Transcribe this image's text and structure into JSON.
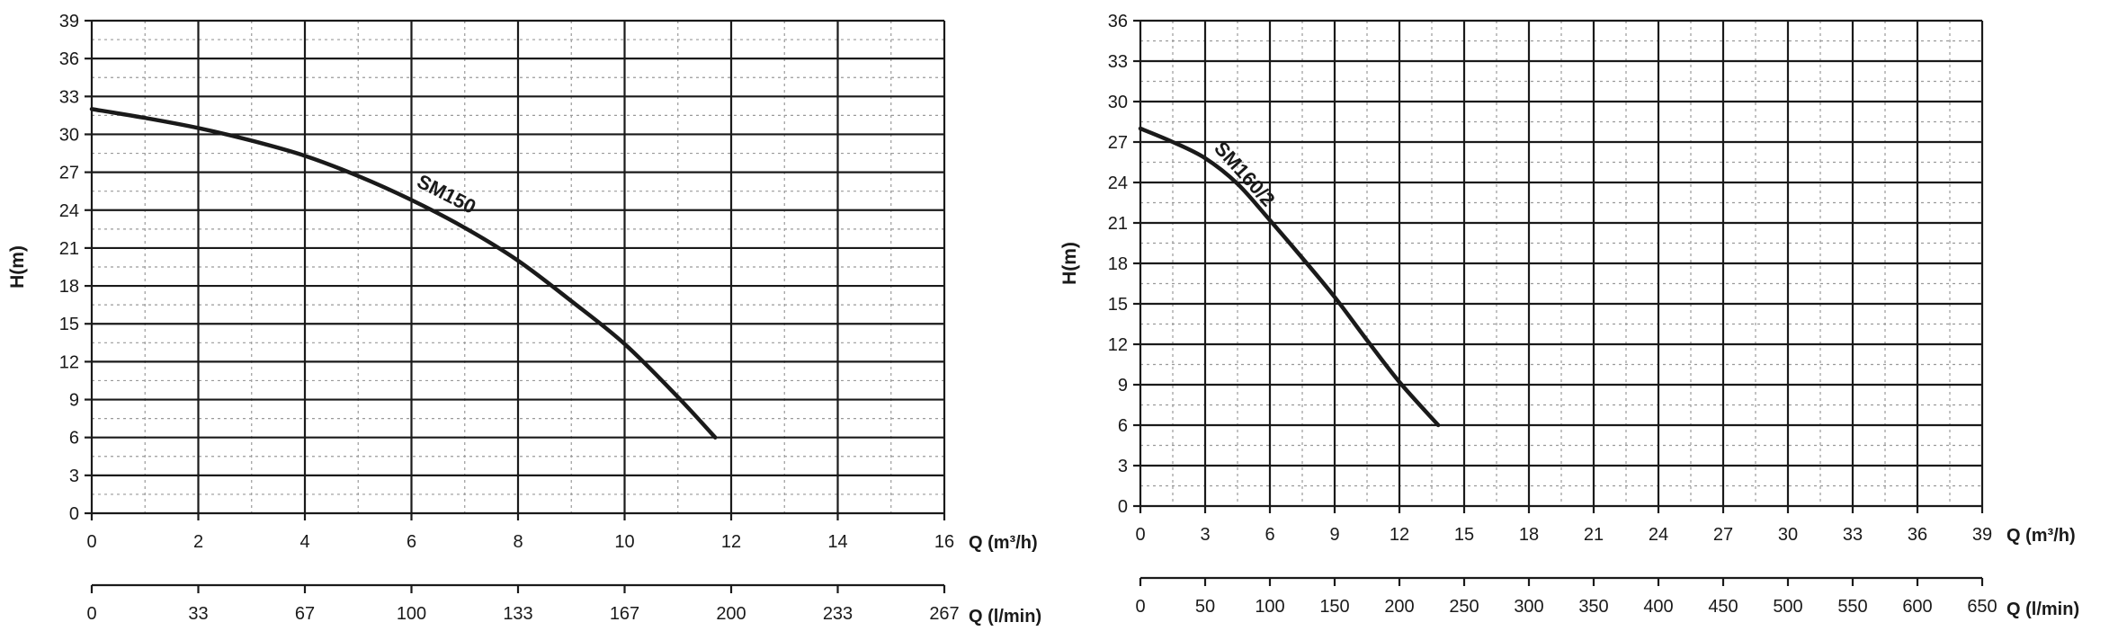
{
  "chart_data": [
    {
      "type": "line",
      "ylabel": "H(m)",
      "ylim": [
        0,
        39
      ],
      "y_ticks": [
        "0",
        "3",
        "6",
        "9",
        "12",
        "15",
        "18",
        "21",
        "24",
        "27",
        "30",
        "33",
        "36",
        "39"
      ],
      "x_label": "Q (m³/h)",
      "xlim": [
        0,
        16
      ],
      "x_ticks": [
        "0",
        "2",
        "4",
        "6",
        "8",
        "10",
        "12",
        "14",
        "16"
      ],
      "x2_label": "Q (l/min)",
      "x2_ticks": [
        "0",
        "33",
        "67",
        "100",
        "133",
        "167",
        "200",
        "233",
        "267"
      ],
      "grid": true,
      "series": [
        {
          "name": "SM150",
          "x": [
            0,
            1,
            2,
            3,
            4,
            5,
            6,
            7,
            8,
            9,
            10,
            11,
            11.7
          ],
          "y": [
            32,
            31.3,
            30.5,
            29.5,
            28.3,
            26.7,
            24.8,
            22.6,
            20,
            16.8,
            13.4,
            9.2,
            6
          ]
        }
      ]
    },
    {
      "type": "line",
      "ylabel": "H(m)",
      "ylim": [
        0,
        36
      ],
      "y_ticks": [
        "0",
        "3",
        "6",
        "9",
        "12",
        "15",
        "18",
        "21",
        "24",
        "27",
        "30",
        "33",
        "36"
      ],
      "x_label": "Q (m³/h)",
      "xlim": [
        0,
        39
      ],
      "x_ticks": [
        "0",
        "3",
        "6",
        "9",
        "12",
        "15",
        "18",
        "21",
        "24",
        "27",
        "30",
        "33",
        "36",
        "39"
      ],
      "x2_label": "Q (l/min)",
      "x2_ticks": [
        "0",
        "50",
        "100",
        "150",
        "200",
        "250",
        "300",
        "350",
        "400",
        "450",
        "500",
        "550",
        "600",
        "650"
      ],
      "grid": true,
      "series": [
        {
          "name": "SM160/2",
          "x": [
            0,
            1.5,
            3,
            4.5,
            6,
            7.5,
            9,
            10.5,
            12,
            13.8
          ],
          "y": [
            28,
            27,
            25.8,
            23.9,
            21.2,
            18.4,
            15.5,
            12.3,
            9.2,
            6
          ]
        }
      ]
    }
  ]
}
